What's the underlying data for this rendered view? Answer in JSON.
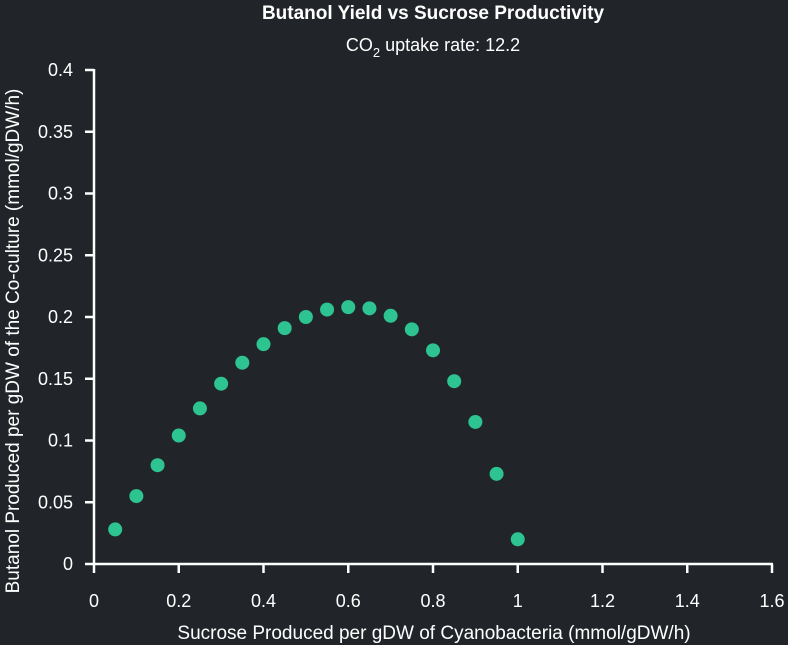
{
  "chart_data": {
    "type": "scatter",
    "title": "Butanol Yield vs Sucrose Productivity",
    "subtitle": {
      "prefix": "CO",
      "sub": "2",
      "suffix": " uptake rate: 12.2"
    },
    "xlabel": "Sucrose Produced per gDW of Cyanobacteria (mmol/gDW/h)",
    "ylabel": "Butanol Produced per gDW of the Co-culture (mmol/gDW/h)",
    "xlim": [
      0,
      1.6
    ],
    "ylim": [
      0,
      0.4
    ],
    "xticks": [
      "0",
      "0.2",
      "0.4",
      "0.6",
      "0.8",
      "1",
      "1.2",
      "1.4",
      "1.6"
    ],
    "yticks": [
      "0",
      "0.05",
      "0.1",
      "0.15",
      "0.2",
      "0.25",
      "0.3",
      "0.35",
      "0.4"
    ],
    "marker_color": "#2ec491",
    "grid": false,
    "series": [
      {
        "x": [
          0.05,
          0.1,
          0.15,
          0.2,
          0.25,
          0.3,
          0.35,
          0.4,
          0.45,
          0.5,
          0.55,
          0.6,
          0.65,
          0.7,
          0.75,
          0.8,
          0.85,
          0.9,
          0.95,
          1.0
        ],
        "y": [
          0.028,
          0.055,
          0.08,
          0.104,
          0.126,
          0.146,
          0.163,
          0.178,
          0.191,
          0.2,
          0.206,
          0.208,
          0.207,
          0.201,
          0.19,
          0.173,
          0.148,
          0.115,
          0.073,
          0.02
        ]
      }
    ]
  }
}
